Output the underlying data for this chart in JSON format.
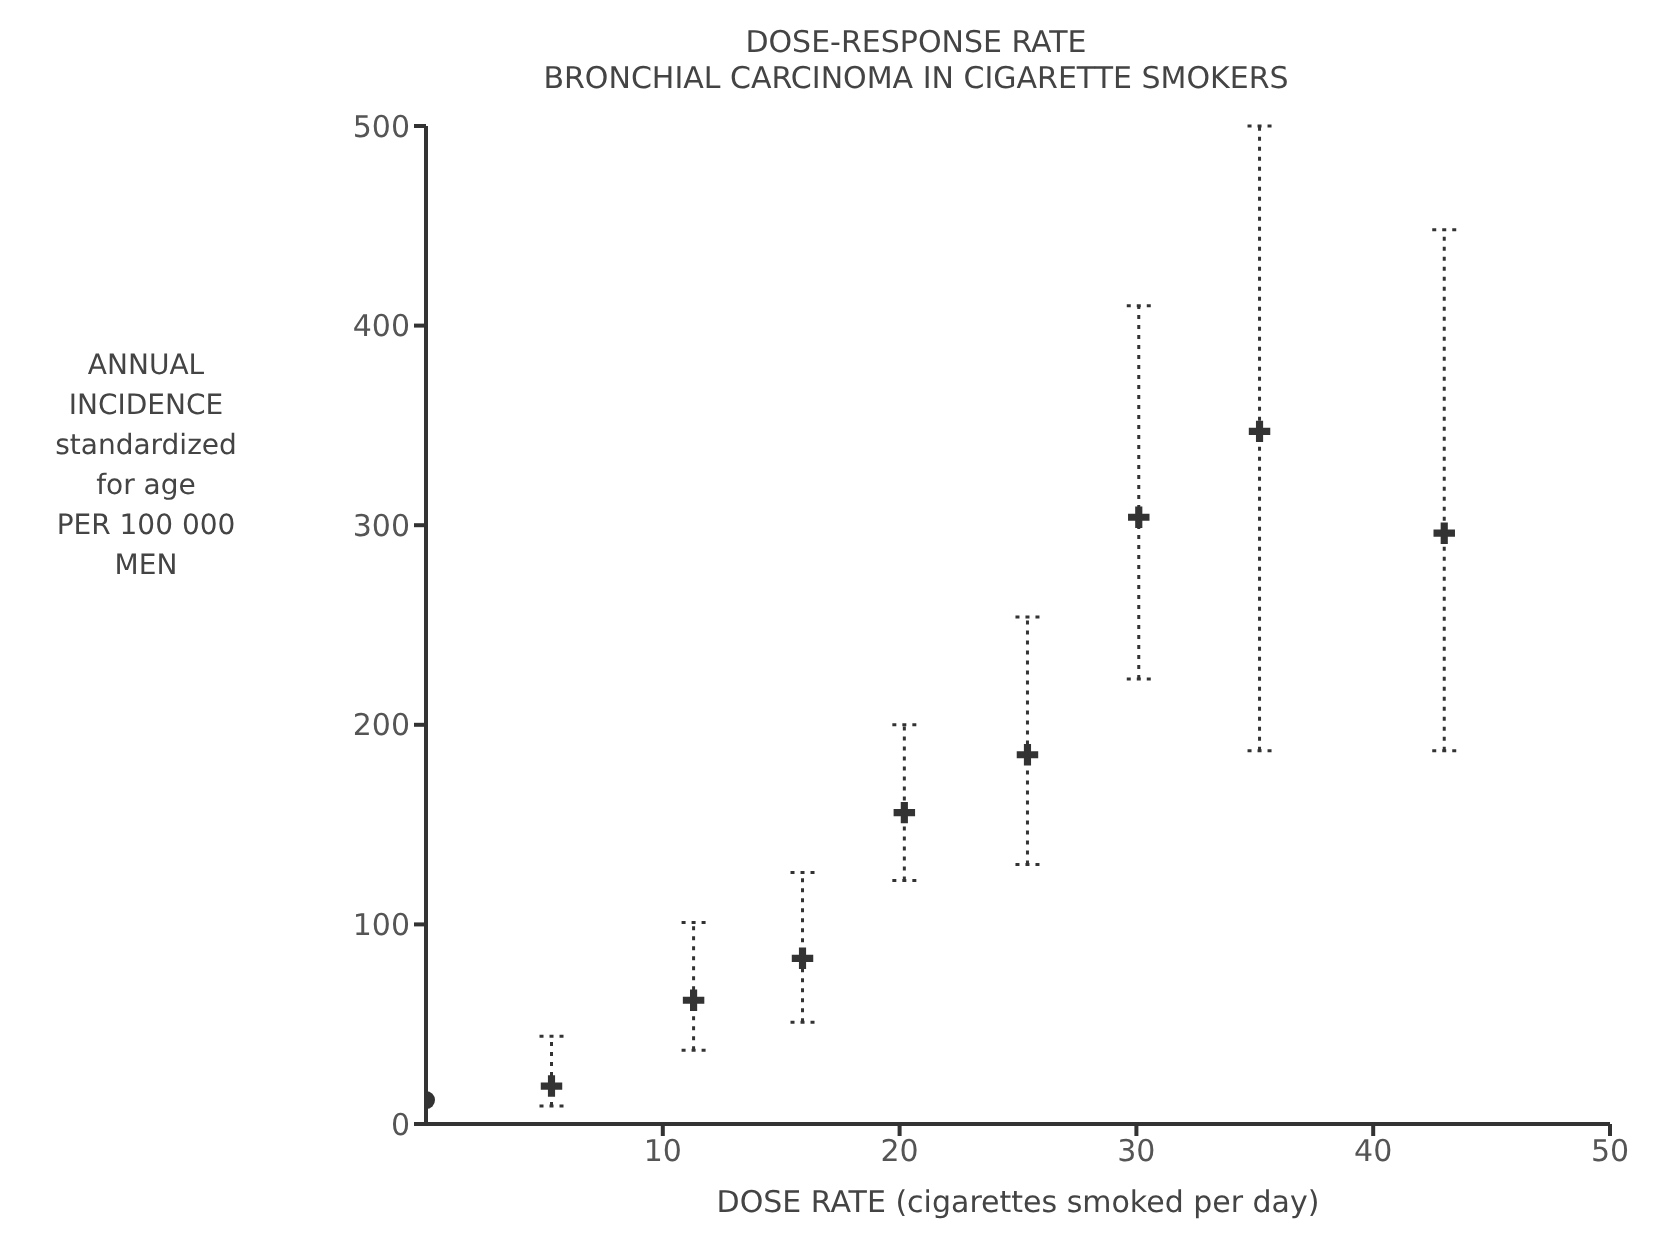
{
  "chart_data": {
    "type": "scatter",
    "title": "DOSE-RESPONSE RATE\nBRONCHIAL CARCINOMA IN CIGARETTE SMOKERS",
    "xlabel": "DOSE RATE (cigarettes smoked per day)",
    "ylabel": "ANNUAL\nINCIDENCE\nstandardized\nfor age\nPER 100 000\nMEN",
    "xlim": [
      0,
      50
    ],
    "xticks": [
      10,
      20,
      30,
      40,
      50
    ],
    "ylim": [
      0,
      500
    ],
    "yticks": [
      0,
      100,
      200,
      300,
      400,
      500
    ],
    "series": [
      {
        "color": "#333333",
        "marker": "cross",
        "x": [
          5.3,
          11.3,
          15.9,
          20.2,
          25.4,
          30.1,
          35.2,
          43.0
        ],
        "values": [
          19,
          62,
          83,
          156,
          185,
          304,
          347,
          296
        ],
        "errors": [
          [
            9,
            44
          ],
          [
            37,
            101
          ],
          [
            51,
            126
          ],
          [
            122,
            200
          ],
          [
            130,
            254
          ],
          [
            223,
            410
          ],
          [
            187,
            500
          ],
          [
            187,
            448
          ]
        ],
        "line_style": "dotted"
      },
      {
        "color": "#333333",
        "marker": "circle",
        "x": [
          0
        ],
        "values": [
          12
        ]
      }
    ]
  }
}
